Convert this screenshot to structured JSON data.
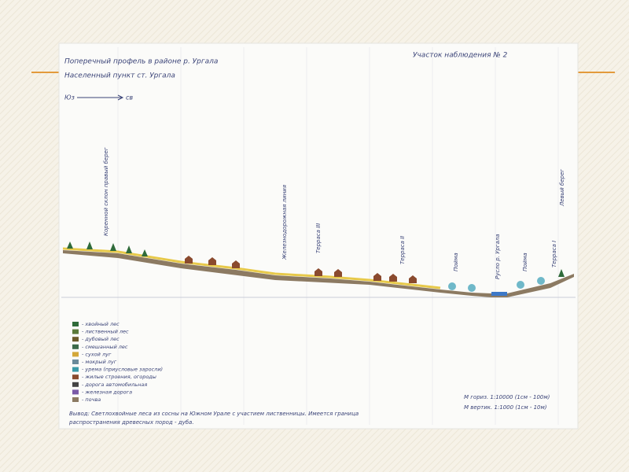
{
  "header": {
    "title": "Поперечный профель в районе р. Ургала",
    "subtitle": "Населенный пункт ст. Ургала",
    "plot": "Участок наблюдения № 2",
    "direction_from": "Юз",
    "direction_to": "св"
  },
  "profile_labels": [
    "Коренной склон правый берег",
    "Железнодорожная линия",
    "Терраса III",
    "Терраса II",
    "Пойма",
    "Русло р. Ургала",
    "Пойма",
    "Терраса I",
    "Левый берег"
  ],
  "legend": [
    "- хвойный лес",
    "- лиственный лес",
    "- дубовый лес",
    "- смешанный лес",
    "- сухой луг",
    "- мокрый луг",
    "- урема (приусловые заросли)",
    "- жилые строения, огороды",
    "- дорога автомобильная",
    "- железная дорога",
    "- почва"
  ],
  "scale": [
    "М гориз. 1:10000 (1см - 100м)",
    "М вертик. 1:1000 (1см - 10м)"
  ],
  "conclusion": [
    "Вывод: Светлохвойные леса из сосны на Южном Урале с участием лиственницы. Имеется граница",
    "распространения древесных пород - дуба."
  ]
}
